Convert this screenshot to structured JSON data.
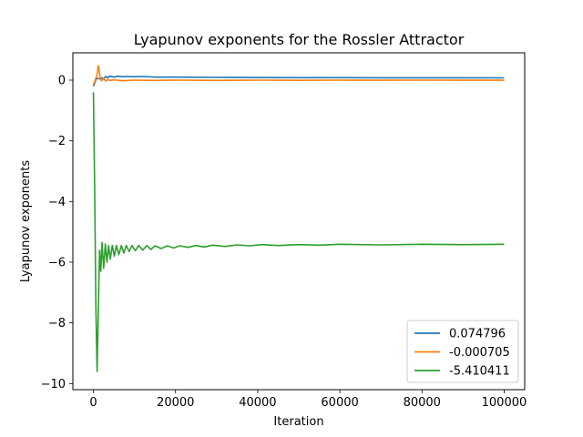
{
  "chart_data": {
    "type": "line",
    "title": "Lyapunov exponents for the Rossler Attractor",
    "xlabel": "Iteration",
    "ylabel": "Lyapunov exponents",
    "xlim": [
      -5000,
      105000
    ],
    "ylim": [
      -10.2,
      0.9
    ],
    "xticks": [
      0,
      20000,
      40000,
      60000,
      80000,
      100000
    ],
    "xtick_labels": [
      "0",
      "20000",
      "40000",
      "60000",
      "80000",
      "100000"
    ],
    "yticks": [
      0,
      -2,
      -4,
      -6,
      -8,
      -10
    ],
    "ytick_labels": [
      "0",
      "−2",
      "−4",
      "−6",
      "−8",
      "−10"
    ],
    "grid": false,
    "legend_position": "bottom-right",
    "series": [
      {
        "name": "0.074796",
        "color": "#1f77b4",
        "points": [
          [
            0,
            -0.2
          ],
          [
            300,
            -0.1
          ],
          [
            600,
            0.02
          ],
          [
            1000,
            0.06
          ],
          [
            1500,
            0.04
          ],
          [
            2000,
            0.07
          ],
          [
            2500,
            0.05
          ],
          [
            3000,
            0.12
          ],
          [
            3500,
            0.08
          ],
          [
            4000,
            0.13
          ],
          [
            5000,
            0.1
          ],
          [
            6000,
            0.13
          ],
          [
            7000,
            0.11
          ],
          [
            8000,
            0.12
          ],
          [
            10000,
            0.11
          ],
          [
            12000,
            0.12
          ],
          [
            15000,
            0.1
          ],
          [
            20000,
            0.1
          ],
          [
            30000,
            0.09
          ],
          [
            40000,
            0.085
          ],
          [
            50000,
            0.08
          ],
          [
            60000,
            0.08
          ],
          [
            70000,
            0.078
          ],
          [
            80000,
            0.077
          ],
          [
            90000,
            0.076
          ],
          [
            100000,
            0.075
          ]
        ]
      },
      {
        "name": "-0.000705",
        "color": "#ff7f0e",
        "points": [
          [
            0,
            -0.15
          ],
          [
            300,
            -0.05
          ],
          [
            700,
            0.1
          ],
          [
            1000,
            0.25
          ],
          [
            1200,
            0.48
          ],
          [
            1400,
            0.3
          ],
          [
            1700,
            0.05
          ],
          [
            2000,
            -0.02
          ],
          [
            2500,
            0.05
          ],
          [
            3000,
            -0.03
          ],
          [
            3500,
            0.02
          ],
          [
            4000,
            -0.01
          ],
          [
            5000,
            0.01
          ],
          [
            7000,
            -0.02
          ],
          [
            10000,
            0.0
          ],
          [
            15000,
            -0.01
          ],
          [
            20000,
            0.0
          ],
          [
            30000,
            -0.01
          ],
          [
            40000,
            0.0
          ],
          [
            50000,
            -0.005
          ],
          [
            60000,
            0.0
          ],
          [
            70000,
            -0.003
          ],
          [
            80000,
            0.0
          ],
          [
            90000,
            -0.002
          ],
          [
            100000,
            -0.001
          ]
        ]
      },
      {
        "name": "-5.410411",
        "color": "#2ca02c",
        "points": [
          [
            0,
            -0.4
          ],
          [
            300,
            -3.5
          ],
          [
            600,
            -7.5
          ],
          [
            900,
            -9.6
          ],
          [
            1200,
            -7.5
          ],
          [
            1500,
            -5.6
          ],
          [
            1800,
            -6.3
          ],
          [
            2100,
            -5.35
          ],
          [
            2500,
            -6.2
          ],
          [
            2900,
            -5.4
          ],
          [
            3300,
            -6.0
          ],
          [
            3700,
            -5.45
          ],
          [
            4100,
            -5.9
          ],
          [
            4600,
            -5.45
          ],
          [
            5100,
            -5.8
          ],
          [
            5600,
            -5.45
          ],
          [
            6200,
            -5.75
          ],
          [
            6800,
            -5.45
          ],
          [
            7400,
            -5.7
          ],
          [
            8000,
            -5.45
          ],
          [
            8700,
            -5.65
          ],
          [
            9400,
            -5.45
          ],
          [
            10200,
            -5.62
          ],
          [
            11000,
            -5.45
          ],
          [
            12000,
            -5.6
          ],
          [
            13000,
            -5.45
          ],
          [
            14000,
            -5.58
          ],
          [
            15000,
            -5.46
          ],
          [
            16500,
            -5.55
          ],
          [
            18000,
            -5.46
          ],
          [
            19500,
            -5.53
          ],
          [
            21000,
            -5.46
          ],
          [
            23000,
            -5.51
          ],
          [
            25000,
            -5.45
          ],
          [
            27000,
            -5.5
          ],
          [
            29000,
            -5.44
          ],
          [
            32000,
            -5.48
          ],
          [
            35000,
            -5.43
          ],
          [
            38000,
            -5.46
          ],
          [
            41000,
            -5.42
          ],
          [
            45000,
            -5.45
          ],
          [
            50000,
            -5.42
          ],
          [
            55000,
            -5.44
          ],
          [
            60000,
            -5.41
          ],
          [
            70000,
            -5.43
          ],
          [
            80000,
            -5.41
          ],
          [
            90000,
            -5.42
          ],
          [
            100000,
            -5.41
          ]
        ]
      }
    ]
  }
}
